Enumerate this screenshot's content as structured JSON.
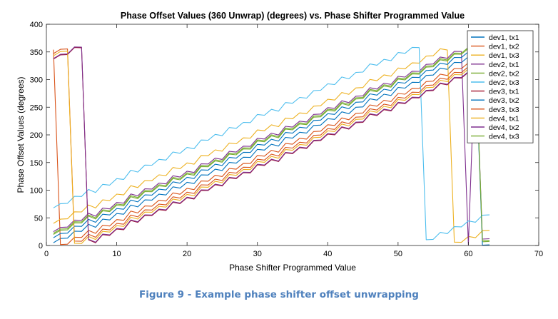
{
  "caption": "Figure 9 - Example phase shifter offset unwrapping",
  "chart_data": {
    "type": "line",
    "title": "Phase Offset Values (360 Unwrap) (degrees) vs. Phase Shifter Programmed Value",
    "xlabel": "Phase Shifter Programmed Value",
    "ylabel": "Phase Offset Values (degrees)",
    "xlim": [
      0,
      70
    ],
    "ylim": [
      0,
      400
    ],
    "xticks": [
      0,
      10,
      20,
      30,
      40,
      50,
      60,
      70
    ],
    "yticks": [
      0,
      50,
      100,
      150,
      200,
      250,
      300,
      350,
      400
    ],
    "grid": false,
    "legend_position": "top-right",
    "x_start": 1,
    "x_end": 63,
    "series": [
      {
        "name": "dev1, tx1",
        "color": "#0072bd",
        "start": 5,
        "wrap_at": 61
      },
      {
        "name": "dev1, tx2",
        "color": "#d95319",
        "start": 354,
        "wrap_at": 3
      },
      {
        "name": "dev1, tx3",
        "color": "#edb120",
        "start": 40,
        "wrap_at": 53
      },
      {
        "name": "dev2, tx1",
        "color": "#7e2f8e",
        "start": 25,
        "wrap_at": 58
      },
      {
        "name": "dev2, tx2",
        "color": "#77ac30",
        "start": 20,
        "wrap_at": 57
      },
      {
        "name": "dev2, tx3",
        "color": "#4dbeee",
        "start": 68,
        "wrap_at": 48
      },
      {
        "name": "dev3, tx1",
        "color": "#a2142f",
        "start": 337,
        "wrap_at": 6
      },
      {
        "name": "dev3, tx2",
        "color": "#0072bd",
        "start": 14,
        "wrap_at": 59
      },
      {
        "name": "dev3, tx3",
        "color": "#d95319",
        "start": 347,
        "wrap_at": 4
      },
      {
        "name": "dev4, tx1",
        "color": "#edb120",
        "start": 343,
        "wrap_at": 3
      },
      {
        "name": "dev4, tx2",
        "color": "#7e2f8e",
        "start": 338,
        "wrap_at": 6
      },
      {
        "name": "dev4, tx3",
        "color": "#77ac30",
        "start": 22,
        "wrap_at": 56
      }
    ]
  }
}
